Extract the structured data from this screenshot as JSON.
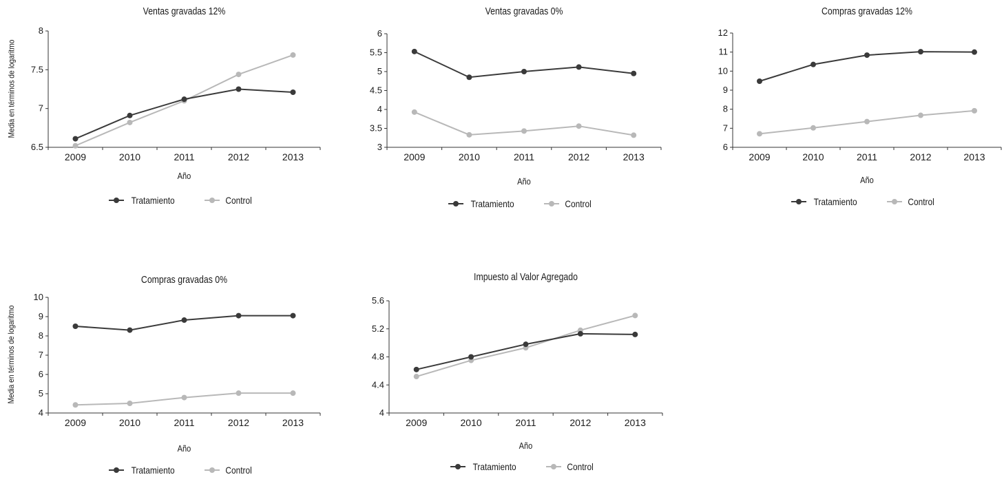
{
  "legend": {
    "treatment": "Tratamiento",
    "control": "Control"
  },
  "colors": {
    "treatment": "#3a3a3a",
    "control": "#b8b8b8",
    "axis": "#333333"
  },
  "chart_data": [
    {
      "type": "line",
      "title": "Ventas gravadas 12%",
      "xlabel": "Año",
      "ylabel": "Media en términos de logaritmo",
      "categories": [
        "2009",
        "2010",
        "2011",
        "2012",
        "2013"
      ],
      "ylim": [
        6.5,
        8
      ],
      "yticks": [
        "6.5",
        "7",
        "7.5",
        "8"
      ],
      "series": [
        {
          "name": "Tratamiento",
          "values": [
            6.61,
            6.91,
            7.12,
            7.25,
            7.21
          ]
        },
        {
          "name": "Control",
          "values": [
            6.52,
            6.82,
            7.1,
            7.44,
            7.69
          ]
        }
      ]
    },
    {
      "type": "line",
      "title": "Ventas gravadas 0%",
      "xlabel": "Año",
      "ylabel": "",
      "categories": [
        "2009",
        "2010",
        "2011",
        "2012",
        "2013"
      ],
      "ylim": [
        3,
        6
      ],
      "yticks": [
        "3",
        "3.5",
        "4",
        "4.5",
        "5",
        "5.5",
        "6"
      ],
      "series": [
        {
          "name": "Tratamiento",
          "values": [
            5.53,
            4.85,
            5.0,
            5.12,
            4.95
          ]
        },
        {
          "name": "Control",
          "values": [
            3.93,
            3.33,
            3.43,
            3.56,
            3.32
          ]
        }
      ]
    },
    {
      "type": "line",
      "title": "Compras gravadas 12%",
      "xlabel": "Año",
      "ylabel": "",
      "categories": [
        "2009",
        "2010",
        "2011",
        "2012",
        "2013"
      ],
      "ylim": [
        6,
        12
      ],
      "yticks": [
        "6",
        "7",
        "8",
        "9",
        "10",
        "11",
        "12"
      ],
      "series": [
        {
          "name": "Tratamiento",
          "values": [
            9.47,
            10.35,
            10.84,
            11.02,
            11.0
          ]
        },
        {
          "name": "Control",
          "values": [
            6.71,
            7.02,
            7.35,
            7.68,
            7.92
          ]
        }
      ]
    },
    {
      "type": "line",
      "title": "Compras gravadas 0%",
      "xlabel": "Año",
      "ylabel": "Media en términos de logaritmo",
      "categories": [
        "2009",
        "2010",
        "2011",
        "2012",
        "2013"
      ],
      "ylim": [
        4,
        10
      ],
      "yticks": [
        "4",
        "5",
        "6",
        "7",
        "8",
        "9",
        "10"
      ],
      "series": [
        {
          "name": "Tratamiento",
          "values": [
            8.5,
            8.3,
            8.82,
            9.05,
            9.05
          ]
        },
        {
          "name": "Control",
          "values": [
            4.42,
            4.5,
            4.8,
            5.03,
            5.03
          ]
        }
      ]
    },
    {
      "type": "line",
      "title": "Impuesto al Valor Agregado",
      "xlabel": "Año",
      "ylabel": "",
      "categories": [
        "2009",
        "2010",
        "2011",
        "2012",
        "2013"
      ],
      "ylim": [
        4,
        5.6
      ],
      "yticks": [
        "4",
        "4.4",
        "4.8",
        "5.2",
        "5.6"
      ],
      "series": [
        {
          "name": "Tratamiento",
          "values": [
            4.62,
            4.8,
            4.98,
            5.13,
            5.12
          ]
        },
        {
          "name": "Control",
          "values": [
            4.52,
            4.75,
            4.93,
            5.18,
            5.39
          ]
        }
      ]
    }
  ]
}
